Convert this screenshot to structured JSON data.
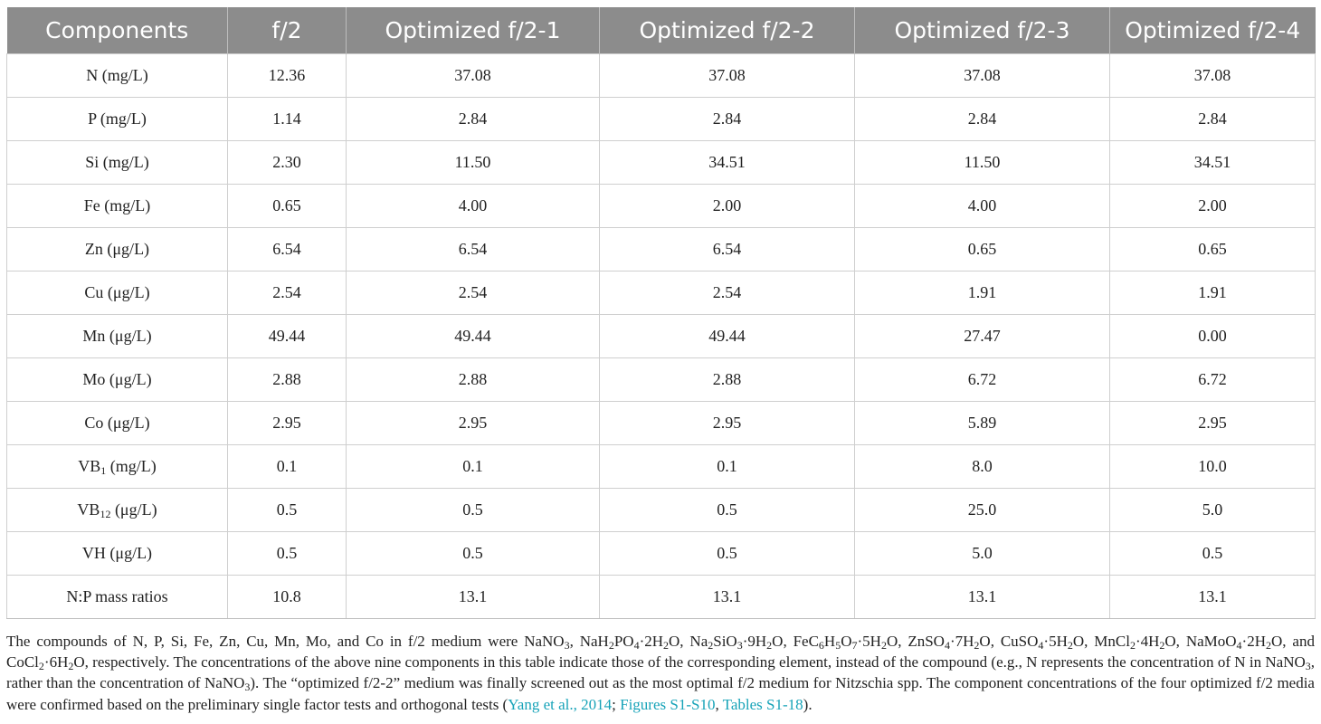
{
  "table": {
    "headers": [
      "Components",
      "f/2",
      "Optimized f/2-1",
      "Optimized f/2-2",
      "Optimized f/2-3",
      "Optimized f/2-4"
    ],
    "rows": [
      {
        "label_pre": "N (mg/L)",
        "label_sub": "",
        "label_post": "",
        "values": [
          "12.36",
          "37.08",
          "37.08",
          "37.08",
          "37.08"
        ]
      },
      {
        "label_pre": "P (mg/L)",
        "label_sub": "",
        "label_post": "",
        "values": [
          "1.14",
          "2.84",
          "2.84",
          "2.84",
          "2.84"
        ]
      },
      {
        "label_pre": "Si (mg/L)",
        "label_sub": "",
        "label_post": "",
        "values": [
          "2.30",
          "11.50",
          "34.51",
          "11.50",
          "34.51"
        ]
      },
      {
        "label_pre": "Fe (mg/L)",
        "label_sub": "",
        "label_post": "",
        "values": [
          "0.65",
          "4.00",
          "2.00",
          "4.00",
          "2.00"
        ]
      },
      {
        "label_pre": "Zn (μg/L)",
        "label_sub": "",
        "label_post": "",
        "values": [
          "6.54",
          "6.54",
          "6.54",
          "0.65",
          "0.65"
        ]
      },
      {
        "label_pre": "Cu (μg/L)",
        "label_sub": "",
        "label_post": "",
        "values": [
          "2.54",
          "2.54",
          "2.54",
          "1.91",
          "1.91"
        ]
      },
      {
        "label_pre": "Mn (μg/L)",
        "label_sub": "",
        "label_post": "",
        "values": [
          "49.44",
          "49.44",
          "49.44",
          "27.47",
          "0.00"
        ]
      },
      {
        "label_pre": "Mo (μg/L)",
        "label_sub": "",
        "label_post": "",
        "values": [
          "2.88",
          "2.88",
          "2.88",
          "6.72",
          "6.72"
        ]
      },
      {
        "label_pre": "Co (μg/L)",
        "label_sub": "",
        "label_post": "",
        "values": [
          "2.95",
          "2.95",
          "2.95",
          "5.89",
          "2.95"
        ]
      },
      {
        "label_pre": "VB",
        "label_sub": "1",
        "label_post": " (mg/L)",
        "values": [
          "0.1",
          "0.1",
          "0.1",
          "8.0",
          "10.0"
        ]
      },
      {
        "label_pre": "VB",
        "label_sub": "12",
        "label_post": " (μg/L)",
        "values": [
          "0.5",
          "0.5",
          "0.5",
          "25.0",
          "5.0"
        ]
      },
      {
        "label_pre": "VH (μg/L)",
        "label_sub": "",
        "label_post": "",
        "values": [
          "0.5",
          "0.5",
          "0.5",
          "5.0",
          "0.5"
        ]
      },
      {
        "label_pre": "N:P mass ratios",
        "label_sub": "",
        "label_post": "",
        "values": [
          "10.8",
          "13.1",
          "13.1",
          "13.1",
          "13.1"
        ]
      }
    ]
  },
  "footnote": {
    "segments": [
      {
        "t": "The compounds of N, P, Si, Fe, Zn, Cu, Mn, Mo, and Co in f/2 medium were NaNO"
      },
      {
        "t": "3",
        "sub": true
      },
      {
        "t": ", NaH"
      },
      {
        "t": "2",
        "sub": true
      },
      {
        "t": "PO"
      },
      {
        "t": "4",
        "sub": true
      },
      {
        "t": "·2H"
      },
      {
        "t": "2",
        "sub": true
      },
      {
        "t": "O, Na"
      },
      {
        "t": "2",
        "sub": true
      },
      {
        "t": "SiO"
      },
      {
        "t": "3",
        "sub": true
      },
      {
        "t": "·9H"
      },
      {
        "t": "2",
        "sub": true
      },
      {
        "t": "O, FeC"
      },
      {
        "t": "6",
        "sub": true
      },
      {
        "t": "H"
      },
      {
        "t": "5",
        "sub": true
      },
      {
        "t": "O"
      },
      {
        "t": "7",
        "sub": true
      },
      {
        "t": "·5H"
      },
      {
        "t": "2",
        "sub": true
      },
      {
        "t": "O, ZnSO"
      },
      {
        "t": "4",
        "sub": true
      },
      {
        "t": "·7H"
      },
      {
        "t": "2",
        "sub": true
      },
      {
        "t": "O, CuSO"
      },
      {
        "t": "4",
        "sub": true
      },
      {
        "t": "·5H"
      },
      {
        "t": "2",
        "sub": true
      },
      {
        "t": "O, MnCl"
      },
      {
        "t": "2",
        "sub": true
      },
      {
        "t": "·4H"
      },
      {
        "t": "2",
        "sub": true
      },
      {
        "t": "O, NaMoO"
      },
      {
        "t": "4",
        "sub": true
      },
      {
        "t": "·2H"
      },
      {
        "t": "2",
        "sub": true
      },
      {
        "t": "O, and CoCl"
      },
      {
        "t": "2",
        "sub": true
      },
      {
        "t": "·6H"
      },
      {
        "t": "2",
        "sub": true
      },
      {
        "t": "O, respectively. The concentrations of the above nine components in this table indicate those of the corresponding element, instead of the compound (e.g., N represents the concentration of N in NaNO"
      },
      {
        "t": "3",
        "sub": true
      },
      {
        "t": ", rather than the concentration of NaNO"
      },
      {
        "t": "3",
        "sub": true
      },
      {
        "t": "). The “optimized f/2-2” medium was finally screened out as the most optimal f/2 medium for Nitzschia spp. The component concentrations of the four optimized f/2 media were confirmed based on the preliminary single factor tests and orthogonal tests ("
      },
      {
        "t": "Yang et al., 2014",
        "link": true
      },
      {
        "t": "; "
      },
      {
        "t": "Figures S1-S10",
        "link": true
      },
      {
        "t": ", "
      },
      {
        "t": "Tables S1-18",
        "link": true
      },
      {
        "t": ")."
      }
    ]
  }
}
